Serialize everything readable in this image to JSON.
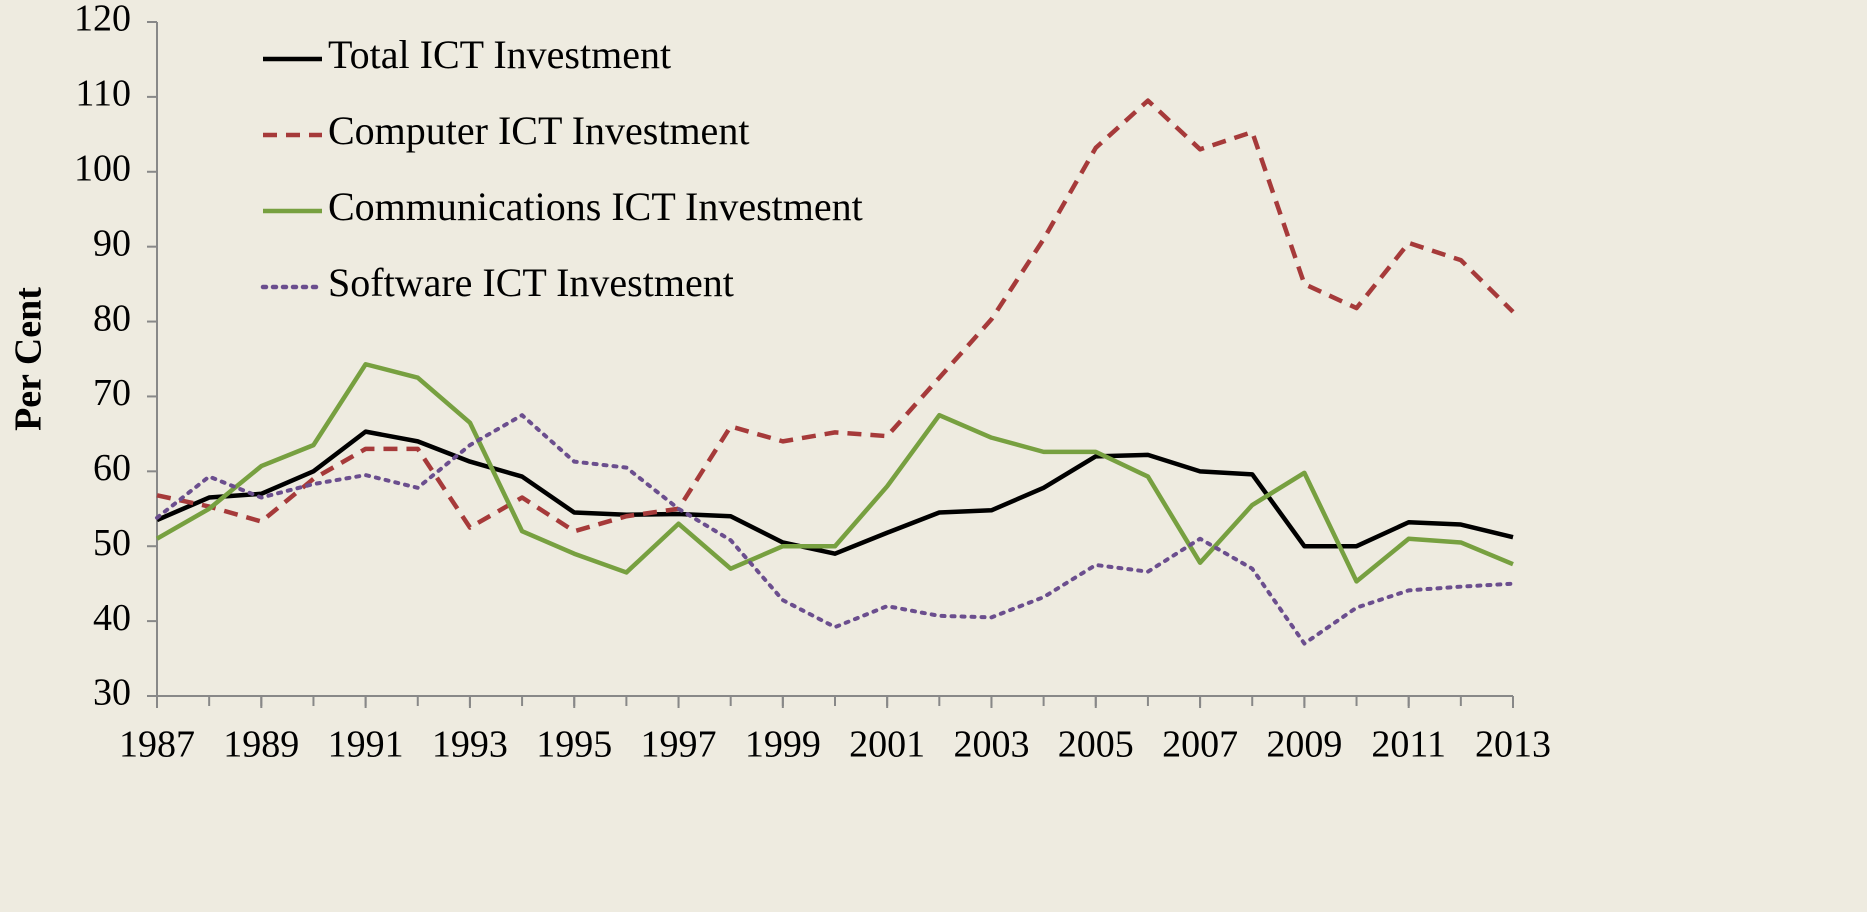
{
  "chart_data": {
    "type": "line",
    "ylabel": "Per Cent",
    "x": [
      1987,
      1988,
      1989,
      1990,
      1991,
      1992,
      1993,
      1994,
      1995,
      1996,
      1997,
      1998,
      1999,
      2000,
      2001,
      2002,
      2003,
      2004,
      2005,
      2006,
      2007,
      2008,
      2009,
      2010,
      2011,
      2012,
      2013
    ],
    "xlim": [
      1987,
      2013
    ],
    "xticks": [
      1987,
      1989,
      1991,
      1993,
      1995,
      1997,
      1999,
      2001,
      2003,
      2005,
      2007,
      2009,
      2011,
      2013
    ],
    "ylim": [
      30,
      120
    ],
    "yticks": [
      30,
      40,
      50,
      60,
      70,
      80,
      90,
      100,
      110,
      120
    ],
    "legend": "upper left",
    "series": [
      {
        "name": "Total ICT Investment",
        "color": "#000000",
        "style": "solid",
        "values": [
          53.5,
          56.5,
          57,
          60,
          65.3,
          64,
          61.3,
          59.3,
          54.5,
          54.2,
          54.3,
          54,
          50.5,
          49,
          51.8,
          54.5,
          54.8,
          57.8,
          62,
          62.2,
          60,
          59.6,
          50,
          50,
          53.2,
          52.9,
          51.2
        ]
      },
      {
        "name": "Computer ICT Investment",
        "color": "#a63a3a",
        "style": "dashed",
        "values": [
          56.8,
          55.3,
          53.3,
          59,
          63,
          63,
          52.5,
          56.5,
          52,
          54,
          55,
          66,
          64,
          65.2,
          64.7,
          72.5,
          80.3,
          91,
          103.2,
          109.5,
          103,
          105.3,
          85,
          81.8,
          90.5,
          88.2,
          81.3
        ]
      },
      {
        "name": "Communications ICT Investment",
        "color": "#77a040",
        "style": "solid",
        "values": [
          51,
          55,
          60.7,
          63.5,
          74.3,
          72.5,
          66.5,
          52,
          49,
          46.5,
          53,
          47,
          50,
          50,
          58,
          67.5,
          64.5,
          62.6,
          62.6,
          59.3,
          47.8,
          55.5,
          59.8,
          45.3,
          51,
          50.5,
          47.6
        ]
      },
      {
        "name": "Software ICT Investment",
        "color": "#6b4e8e",
        "style": "dotted",
        "values": [
          53.8,
          59.3,
          56.5,
          58.3,
          59.5,
          57.8,
          63.5,
          67.5,
          61.3,
          60.5,
          55,
          50.8,
          42.8,
          39.2,
          42,
          40.7,
          40.5,
          43.2,
          47.5,
          46.6,
          51,
          47,
          37,
          41.8,
          44.1,
          44.6,
          45
        ]
      }
    ]
  }
}
